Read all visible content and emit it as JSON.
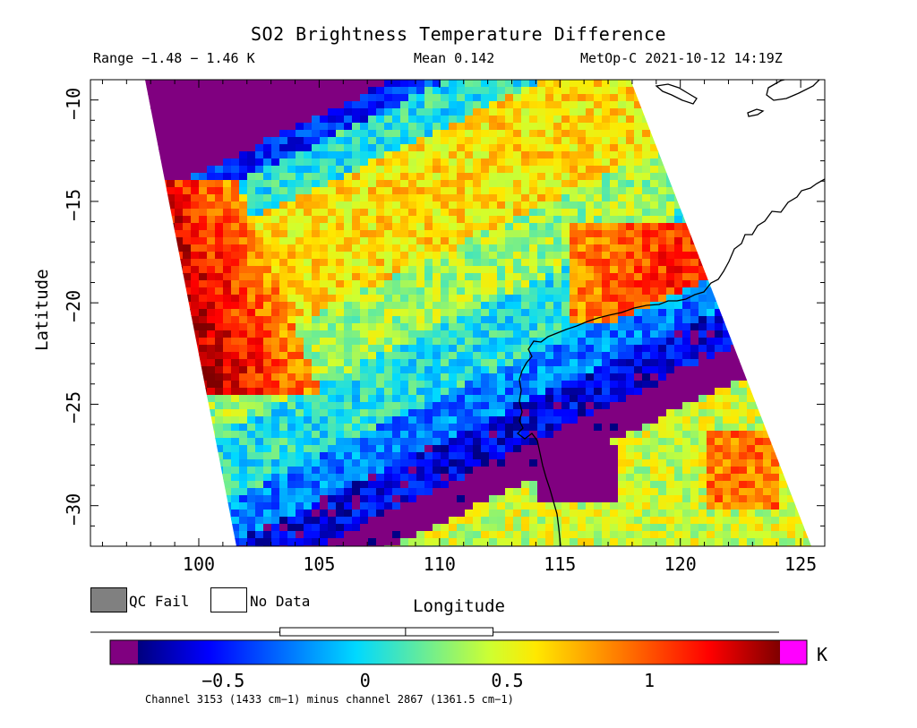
{
  "header": {
    "title": "SO2 Brightness Temperature Difference",
    "range": "Range −1.48 − 1.46 K",
    "mean": "Mean 0.142",
    "satellite": "MetOp-C 2021-10-12 14:19Z"
  },
  "map": {
    "lon_range": [
      95.5,
      126
    ],
    "lat_range": [
      -32,
      -9
    ],
    "x_ticks": [
      "100",
      "105",
      "110",
      "115",
      "120",
      "125"
    ],
    "x_tick_values": [
      100,
      105,
      110,
      115,
      120,
      125
    ],
    "y_ticks": [
      "−10",
      "−15",
      "−20",
      "−25",
      "−30"
    ],
    "y_tick_values": [
      -10,
      -15,
      -20,
      -25,
      -30
    ],
    "xlabel": "Longitude",
    "ylabel": "Latitude",
    "colors": {
      "coastline": "#000000",
      "no_data": "#ffffff",
      "qc_fail": "#808080"
    }
  },
  "legend": {
    "qc_fail_label": "QC Fail",
    "no_data_label": "No Data"
  },
  "colorbar": {
    "unit": "K",
    "range": [
      -0.8,
      1.46
    ],
    "tick_values": [
      -0.5,
      0,
      0.5,
      1
    ],
    "tick_labels": [
      "−0.5",
      "0",
      "0.5",
      "1"
    ],
    "underflow_color": "#800080",
    "overflow_color": "#ff00ff",
    "stats_box": {
      "low": -0.3,
      "median": 0.142,
      "high": 0.45,
      "whisker_min": -0.8,
      "whisker_max": 1.46
    },
    "caption": "Channel 3153 (1433 cm−1) minus channel 2867 (1361.5 cm−1)"
  }
}
